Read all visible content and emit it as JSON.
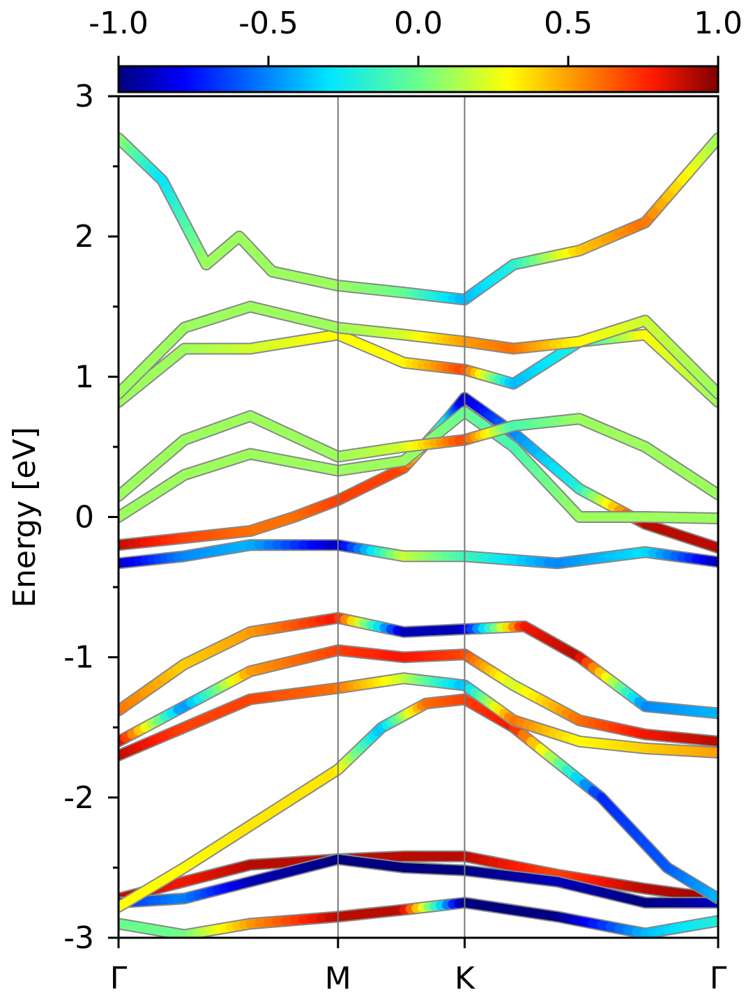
{
  "chart_data": {
    "type": "line",
    "title": "",
    "ylabel": "Energy [eV]",
    "xlabel": "",
    "ylim": [
      -3,
      3
    ],
    "y_ticks": [
      "3",
      "2",
      "1",
      "0",
      "-1",
      "-2",
      "-3"
    ],
    "y_tick_values": [
      3,
      2,
      1,
      0,
      -1,
      -2,
      -3
    ],
    "k_path": {
      "labels": [
        "Γ",
        "M",
        "K",
        "Γ"
      ],
      "positions": [
        0,
        1.0,
        1.577,
        2.732
      ]
    },
    "colorbar": {
      "colormap": "jet",
      "range": [
        -1.0,
        1.0
      ],
      "tick_labels": [
        "-1.0",
        "-0.5",
        "0.0",
        "0.5",
        "1.0"
      ],
      "tick_values": [
        -1.0,
        -0.5,
        0.0,
        0.5,
        1.0
      ]
    },
    "legend": "none",
    "grid": false,
    "bands": [
      {
        "points": [
          [
            0,
            -2.9
          ],
          [
            0.3,
            -2.98
          ],
          [
            0.6,
            -2.9
          ],
          [
            1.0,
            -2.85
          ],
          [
            1.3,
            -2.8
          ],
          [
            1.577,
            -2.75
          ],
          [
            2.0,
            -2.85
          ],
          [
            2.4,
            -2.97
          ],
          [
            2.732,
            -2.88
          ]
        ],
        "color_values": [
          0.0,
          0.0,
          0.5,
          0.9,
          0.9,
          -1.0,
          -1.0,
          -0.4,
          -0.2
        ]
      },
      {
        "points": [
          [
            0,
            -2.72
          ],
          [
            0.3,
            -2.6
          ],
          [
            0.6,
            -2.48
          ],
          [
            1.0,
            -2.44
          ],
          [
            1.3,
            -2.42
          ],
          [
            1.577,
            -2.42
          ],
          [
            2.0,
            -2.55
          ],
          [
            2.4,
            -2.65
          ],
          [
            2.732,
            -2.72
          ]
        ],
        "color_values": [
          0.9,
          0.8,
          0.9,
          0.9,
          0.9,
          0.9,
          0.7,
          0.9,
          0.95
        ]
      },
      {
        "points": [
          [
            0,
            -2.75
          ],
          [
            0.3,
            -2.72
          ],
          [
            0.6,
            -2.6
          ],
          [
            1.0,
            -2.44
          ],
          [
            1.3,
            -2.5
          ],
          [
            1.577,
            -2.52
          ],
          [
            2.0,
            -2.6
          ],
          [
            2.4,
            -2.75
          ],
          [
            2.732,
            -2.75
          ]
        ],
        "color_values": [
          -0.7,
          -0.5,
          -0.9,
          -1.0,
          -1.0,
          -1.0,
          -0.9,
          -1.0,
          -0.9
        ]
      },
      {
        "points": [
          [
            0,
            -2.78
          ],
          [
            0.3,
            -2.5
          ],
          [
            0.6,
            -2.2
          ],
          [
            1.0,
            -1.8
          ],
          [
            1.2,
            -1.5
          ],
          [
            1.4,
            -1.33
          ],
          [
            1.577,
            -1.3
          ],
          [
            1.8,
            -1.5
          ],
          [
            2.2,
            -2.0
          ],
          [
            2.5,
            -2.5
          ],
          [
            2.732,
            -2.72
          ]
        ],
        "color_values": [
          0.3,
          0.3,
          0.35,
          0.35,
          -0.4,
          0.6,
          0.7,
          0.8,
          -0.7,
          -0.6,
          -0.4
        ]
      },
      {
        "points": [
          [
            0,
            -1.7
          ],
          [
            0.3,
            -1.5
          ],
          [
            0.6,
            -1.3
          ],
          [
            1.0,
            -1.22
          ],
          [
            1.3,
            -1.15
          ],
          [
            1.577,
            -1.2
          ],
          [
            1.8,
            -1.45
          ],
          [
            2.1,
            -1.6
          ],
          [
            2.4,
            -1.65
          ],
          [
            2.732,
            -1.68
          ]
        ],
        "color_values": [
          0.9,
          0.7,
          0.7,
          0.6,
          0.2,
          -0.4,
          0.6,
          0.3,
          0.4,
          0.5
        ]
      },
      {
        "points": [
          [
            0,
            -1.6
          ],
          [
            0.3,
            -1.35
          ],
          [
            0.6,
            -1.1
          ],
          [
            1.0,
            -0.95
          ],
          [
            1.3,
            -1.0
          ],
          [
            1.577,
            -0.98
          ],
          [
            1.8,
            -1.2
          ],
          [
            2.1,
            -1.45
          ],
          [
            2.4,
            -1.55
          ],
          [
            2.732,
            -1.6
          ]
        ],
        "color_values": [
          0.9,
          -0.5,
          0.5,
          0.7,
          0.8,
          0.7,
          0.2,
          0.6,
          0.8,
          0.9
        ]
      },
      {
        "points": [
          [
            0,
            -1.38
          ],
          [
            0.3,
            -1.05
          ],
          [
            0.6,
            -0.82
          ],
          [
            1.0,
            -0.72
          ],
          [
            1.3,
            -0.82
          ],
          [
            1.577,
            -0.8
          ],
          [
            1.85,
            -0.78
          ],
          [
            2.1,
            -1.0
          ],
          [
            2.4,
            -1.35
          ],
          [
            2.732,
            -1.4
          ]
        ],
        "color_values": [
          0.6,
          0.4,
          0.5,
          0.8,
          -0.9,
          -0.9,
          0.8,
          0.9,
          -0.5,
          -0.4
        ]
      },
      {
        "points": [
          [
            0,
            -0.33
          ],
          [
            0.3,
            -0.28
          ],
          [
            0.6,
            -0.2
          ],
          [
            1.0,
            -0.2
          ],
          [
            1.3,
            -0.28
          ],
          [
            1.577,
            -0.28
          ],
          [
            2.0,
            -0.33
          ],
          [
            2.4,
            -0.25
          ],
          [
            2.732,
            -0.32
          ]
        ],
        "color_values": [
          -0.9,
          -0.5,
          -0.4,
          -0.9,
          0.2,
          -0.1,
          -0.5,
          -0.3,
          -0.9
        ]
      },
      {
        "points": [
          [
            0,
            -0.2
          ],
          [
            0.3,
            -0.15
          ],
          [
            0.6,
            -0.1
          ],
          [
            0.8,
            0.0
          ],
          [
            1.0,
            0.12
          ],
          [
            1.3,
            0.35
          ],
          [
            1.5,
            0.7
          ],
          [
            1.577,
            0.85
          ],
          [
            1.8,
            0.6
          ],
          [
            2.1,
            0.2
          ],
          [
            2.4,
            -0.05
          ],
          [
            2.732,
            -0.22
          ]
        ],
        "color_values": [
          0.9,
          0.7,
          0.6,
          0.6,
          0.7,
          0.7,
          -0.3,
          -0.9,
          -0.5,
          -0.2,
          0.9,
          0.9
        ]
      },
      {
        "points": [
          [
            0,
            0.0
          ],
          [
            0.3,
            0.3
          ],
          [
            0.6,
            0.45
          ],
          [
            1.0,
            0.33
          ],
          [
            1.3,
            0.4
          ],
          [
            1.577,
            0.75
          ],
          [
            1.8,
            0.5
          ],
          [
            2.1,
            0.0
          ],
          [
            2.4,
            0.0
          ],
          [
            2.732,
            -0.01
          ]
        ],
        "color_values": [
          0.1,
          0.1,
          0.1,
          0.1,
          0.1,
          0.0,
          -0.1,
          0.1,
          0.1,
          0.1
        ]
      },
      {
        "points": [
          [
            0,
            0.15
          ],
          [
            0.3,
            0.55
          ],
          [
            0.6,
            0.72
          ],
          [
            1.0,
            0.43
          ],
          [
            1.3,
            0.5
          ],
          [
            1.577,
            0.55
          ],
          [
            1.8,
            0.65
          ],
          [
            2.1,
            0.7
          ],
          [
            2.4,
            0.5
          ],
          [
            2.732,
            0.16
          ]
        ],
        "color_values": [
          0.1,
          0.1,
          0.1,
          0.1,
          0.2,
          0.7,
          -0.1,
          0.1,
          0.1,
          0.1
        ]
      },
      {
        "points": [
          [
            0,
            0.82
          ],
          [
            0.3,
            1.2
          ],
          [
            0.6,
            1.2
          ],
          [
            1.0,
            1.3
          ],
          [
            1.3,
            1.1
          ],
          [
            1.577,
            1.05
          ],
          [
            1.8,
            0.95
          ],
          [
            2.1,
            1.25
          ],
          [
            2.4,
            1.3
          ],
          [
            2.732,
            0.82
          ]
        ],
        "color_values": [
          0.1,
          0.1,
          0.2,
          0.3,
          0.3,
          0.7,
          -0.4,
          -0.2,
          0.3,
          0.1
        ]
      },
      {
        "points": [
          [
            0,
            0.88
          ],
          [
            0.3,
            1.35
          ],
          [
            0.6,
            1.5
          ],
          [
            1.0,
            1.35
          ],
          [
            1.3,
            1.3
          ],
          [
            1.577,
            1.25
          ],
          [
            1.8,
            1.2
          ],
          [
            2.1,
            1.25
          ],
          [
            2.4,
            1.4
          ],
          [
            2.732,
            0.88
          ]
        ],
        "color_values": [
          0.1,
          0.1,
          0.1,
          0.1,
          0.2,
          0.5,
          0.6,
          0.3,
          0.2,
          0.1
        ]
      },
      {
        "points": [
          [
            0,
            2.7
          ],
          [
            0.2,
            2.4
          ],
          [
            0.4,
            1.8
          ],
          [
            0.55,
            2.0
          ],
          [
            0.7,
            1.75
          ],
          [
            1.0,
            1.65
          ],
          [
            1.3,
            1.6
          ],
          [
            1.577,
            1.55
          ],
          [
            1.8,
            1.8
          ],
          [
            2.1,
            1.9
          ],
          [
            2.4,
            2.1
          ],
          [
            2.732,
            2.7
          ]
        ],
        "color_values": [
          0.1,
          -0.3,
          0.1,
          0.1,
          0.1,
          0.1,
          0.0,
          -0.4,
          -0.2,
          0.4,
          0.6,
          0.1
        ]
      }
    ]
  }
}
